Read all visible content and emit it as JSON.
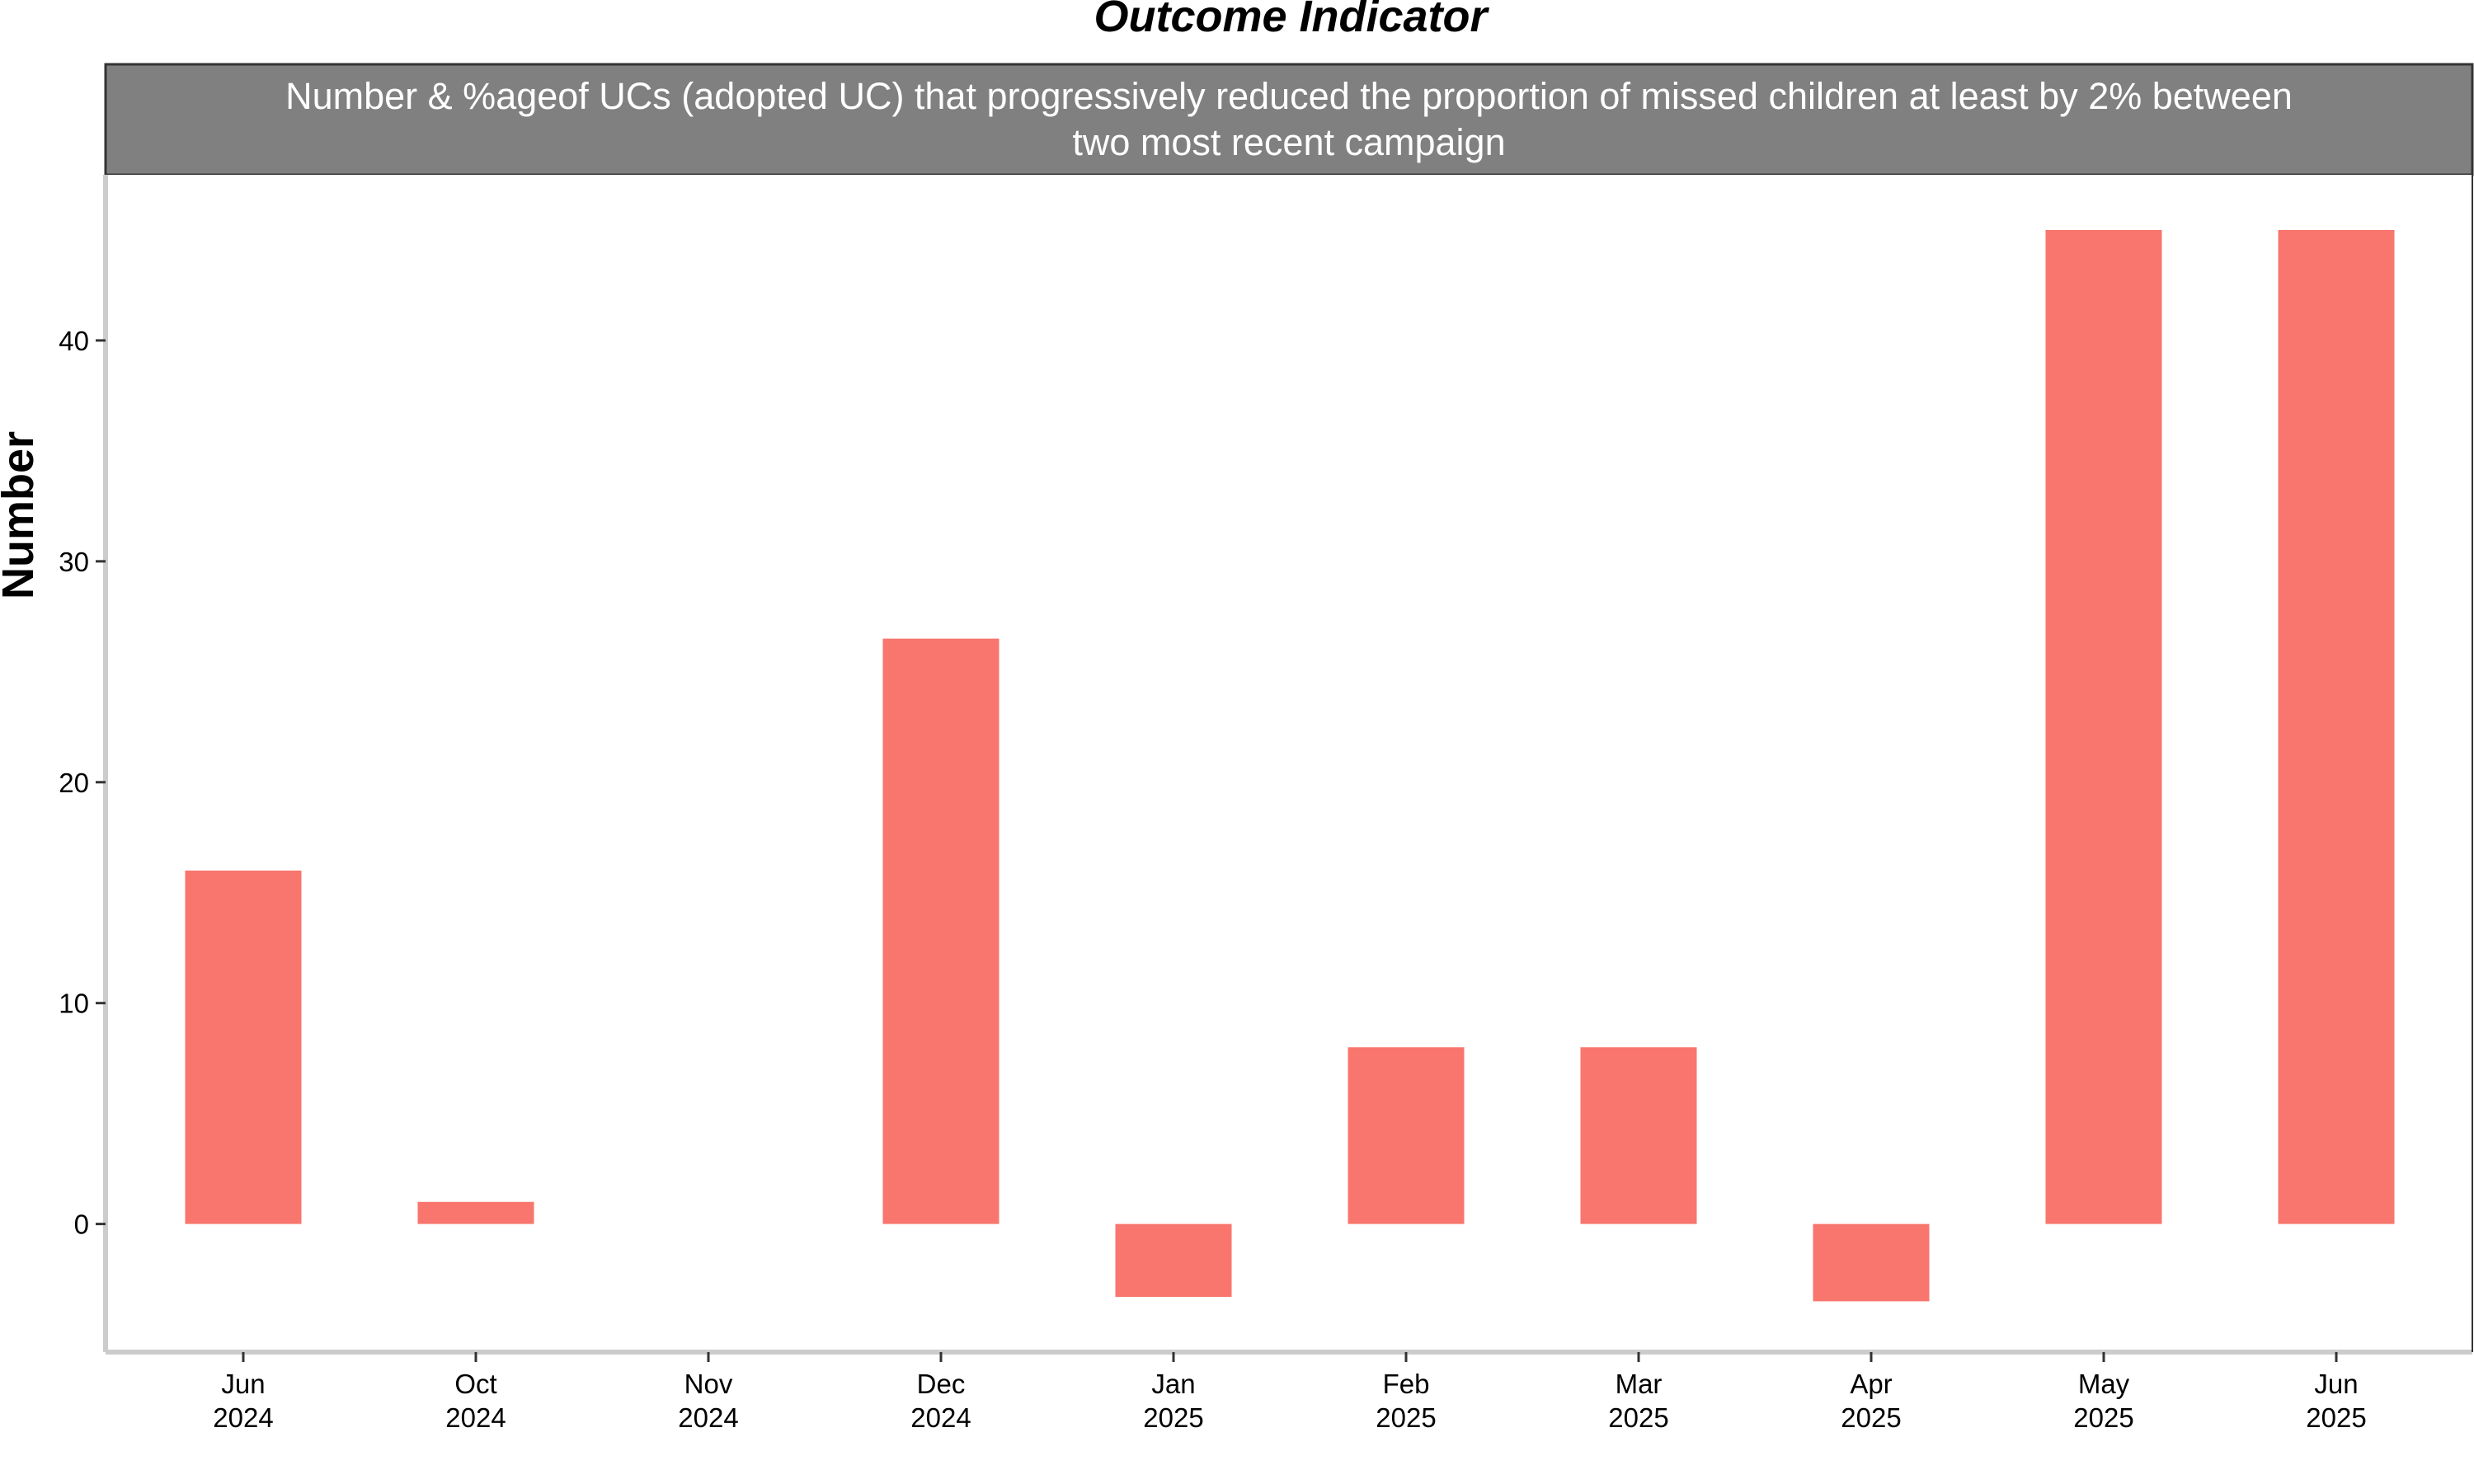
{
  "chart_data": {
    "type": "bar",
    "title": "Outcome Indicator",
    "facet_strip": [
      "Number & %ageof UCs (adopted UC) that progressively reduced the proportion of missed children at least by 2% between",
      "two most recent campaign"
    ],
    "xlabel": "",
    "ylabel": "Number",
    "categories": [
      [
        "Jun",
        "2024"
      ],
      [
        "Oct",
        "2024"
      ],
      [
        "Nov",
        "2024"
      ],
      [
        "Dec",
        "2024"
      ],
      [
        "Jan",
        "2025"
      ],
      [
        "Feb",
        "2025"
      ],
      [
        "Mar",
        "2025"
      ],
      [
        "Apr",
        "2025"
      ],
      [
        "May",
        "2025"
      ],
      [
        "Jun",
        "2025"
      ]
    ],
    "values": [
      16,
      1,
      0,
      26.5,
      -3.3,
      8,
      8,
      -3.5,
      45,
      45
    ],
    "ylim": [
      -5.8,
      47.5
    ],
    "yticks": [
      0,
      10,
      20,
      30,
      40
    ],
    "grid": false,
    "legend": "none",
    "colors": {
      "bar": "#F8766D",
      "strip": "#808080",
      "axis": "#cccccc"
    }
  }
}
